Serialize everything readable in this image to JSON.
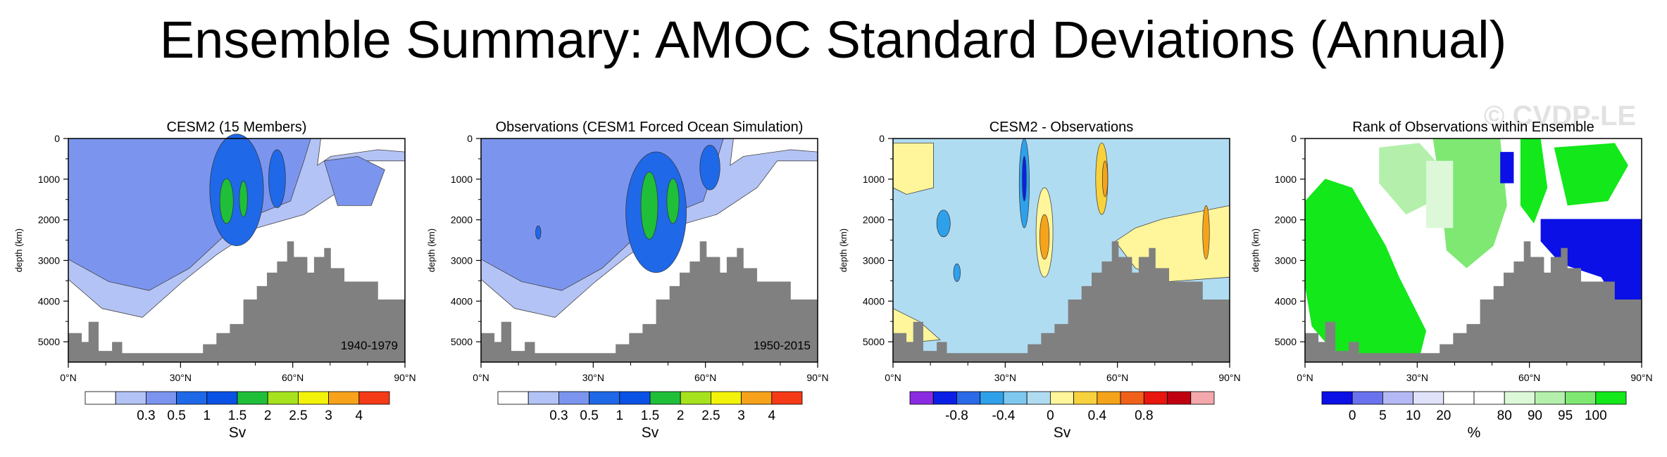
{
  "title": "Ensemble Summary: AMOC Standard Deviations (Annual)",
  "watermark": "© CVDP-LE",
  "chart_data": [
    {
      "type": "heatmap",
      "title": "CESM2 (15 Members)",
      "ylabel": "depth (km)",
      "xlabel": "",
      "x_ticks": [
        "0°N",
        "30°N",
        "60°N",
        "90°N"
      ],
      "xlim": [
        0,
        90
      ],
      "y_ticks": [
        "0",
        "1000",
        "2000",
        "3000",
        "4000",
        "5000"
      ],
      "ylim": [
        0,
        5500
      ],
      "period": "1940-1979",
      "field": "std",
      "colorbar": {
        "unit": "Sv",
        "colors": [
          "#ffffff",
          "#b4c3f5",
          "#7b95ef",
          "#1f68e8",
          "#0a52e6",
          "#1fbf3a",
          "#a6e21d",
          "#f2f20a",
          "#f7a21a",
          "#f53a17"
        ],
        "labels": [
          "0.3",
          "0.5",
          "1",
          "1.5",
          "2",
          "2.5",
          "3",
          "4"
        ]
      }
    },
    {
      "type": "heatmap",
      "title": "Observations (CESM1 Forced Ocean Simulation)",
      "ylabel": "depth (km)",
      "xlabel": "",
      "x_ticks": [
        "0°N",
        "30°N",
        "60°N",
        "90°N"
      ],
      "xlim": [
        0,
        90
      ],
      "y_ticks": [
        "0",
        "1000",
        "2000",
        "3000",
        "4000",
        "5000"
      ],
      "ylim": [
        0,
        5500
      ],
      "period": "1950-2015",
      "field": "std",
      "colorbar": {
        "unit": "Sv",
        "colors": [
          "#ffffff",
          "#b4c3f5",
          "#7b95ef",
          "#1f68e8",
          "#0a52e6",
          "#1fbf3a",
          "#a6e21d",
          "#f2f20a",
          "#f7a21a",
          "#f53a17"
        ],
        "labels": [
          "0.3",
          "0.5",
          "1",
          "1.5",
          "2",
          "2.5",
          "3",
          "4"
        ]
      }
    },
    {
      "type": "heatmap",
      "title": "CESM2 - Observations",
      "ylabel": "depth (km)",
      "xlabel": "",
      "x_ticks": [
        "0°N",
        "30°N",
        "60°N",
        "90°N"
      ],
      "xlim": [
        0,
        90
      ],
      "y_ticks": [
        "0",
        "1000",
        "2000",
        "3000",
        "4000",
        "5000"
      ],
      "ylim": [
        0,
        5500
      ],
      "period": "",
      "field": "diff",
      "colorbar": {
        "unit": "Sv",
        "colors": [
          "#8a2be2",
          "#0a1fe6",
          "#2a6ae8",
          "#2fa0ea",
          "#7ec8f0",
          "#b0dcf2",
          "#fff59a",
          "#f7d23c",
          "#f5a31a",
          "#f0601a",
          "#e8160e",
          "#c00010",
          "#f4a8ac"
        ],
        "labels": [
          "-0.8",
          "-0.4",
          "0",
          "0.4",
          "0.8"
        ]
      }
    },
    {
      "type": "heatmap",
      "title": "Rank of Observations within Ensemble",
      "ylabel": "depth (km)",
      "xlabel": "",
      "x_ticks": [
        "0°N",
        "30°N",
        "60°N",
        "90°N"
      ],
      "xlim": [
        0,
        90
      ],
      "y_ticks": [
        "0",
        "1000",
        "2000",
        "3000",
        "4000",
        "5000"
      ],
      "ylim": [
        0,
        5500
      ],
      "period": "",
      "field": "rank",
      "colorbar": {
        "unit": "%",
        "colors": [
          "#0a10e6",
          "#6a72ee",
          "#b4b8f4",
          "#e0e2fa",
          "#ffffff",
          "#ffffff",
          "#dcf8d8",
          "#b4f0ac",
          "#7ee872",
          "#12e81a"
        ],
        "labels": [
          "0",
          "5",
          "10",
          "20",
          "80",
          "90",
          "95",
          "100"
        ]
      }
    }
  ]
}
